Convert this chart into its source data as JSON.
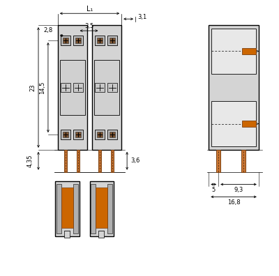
{
  "bg_color": "#ffffff",
  "lc": "#000000",
  "gc": "#d4d4d4",
  "gc2": "#e8e8e8",
  "oc": "#cc6600",
  "brown": "#8B4513",
  "fs": 6.0,
  "fs_l1": 7.0,
  "labels": {
    "L1": "L₁",
    "d28": "2,8",
    "d35": "3,5",
    "d31": "3,1",
    "d23": "23",
    "d145": "14,5",
    "d36": "3,6",
    "d435": "4,35",
    "d5": "5",
    "d93": "9,3",
    "d168": "16,8"
  }
}
